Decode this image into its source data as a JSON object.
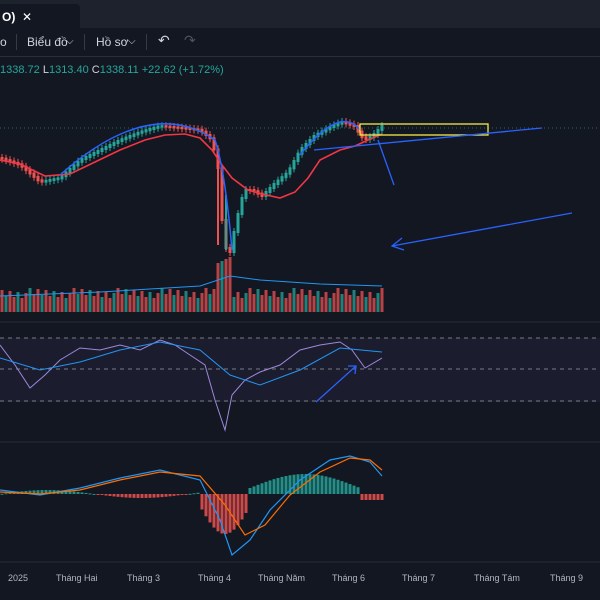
{
  "tab": {
    "label": "O)",
    "close": "✕"
  },
  "toolbar": {
    "partial": "o",
    "chart_menu": "Biểu đồ",
    "profile_menu": "Hồ sơ",
    "chevron": "⌵",
    "undo": "↶",
    "redo": "↷"
  },
  "ohlc": {
    "h_value": "1338.72",
    "l_key": "L",
    "l_value": "1313.40",
    "c_key": "C",
    "c_value": "1338.11",
    "change": "+22.62 (+1.72%)"
  },
  "time_axis": [
    "2025",
    "Tháng Hai",
    "Tháng 3",
    "Tháng 4",
    "Tháng Năm",
    "Tháng 6",
    "Tháng 7",
    "Tháng Tám",
    "Tháng 9"
  ],
  "colors": {
    "up": "#26a69a",
    "down": "#ef5350",
    "ma": "#f23645",
    "annotation": "#2962ff",
    "highlight_box": "#f5e94a",
    "rsi": "#9c89d9",
    "macd": "#2196f3",
    "signal": "#ff6d00"
  }
}
